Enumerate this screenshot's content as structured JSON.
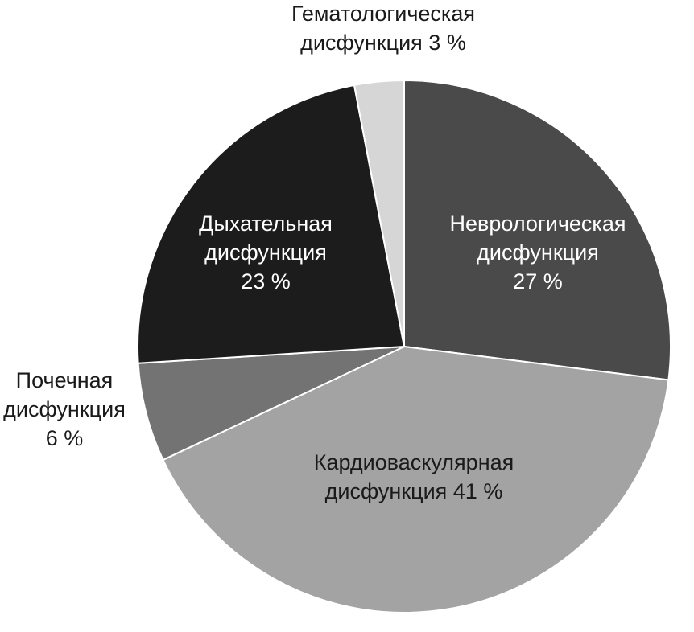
{
  "chart_data": {
    "type": "pie",
    "title": "",
    "start_angle_deg": 0,
    "direction": "clockwise",
    "slices": [
      {
        "label_lines": [
          "Неврологическая",
          "дисфункция",
          "27 %"
        ],
        "value": 27,
        "color": "#4a4a4a",
        "label_color": "#ffffff",
        "label_position": "inside"
      },
      {
        "label_lines": [
          "Кардиоваскулярная",
          "дисфункция 41 %"
        ],
        "value": 41,
        "color": "#a3a3a3",
        "label_color": "#1a1a1a",
        "label_position": "inside"
      },
      {
        "label_lines": [
          "Почечная",
          "дисфункция",
          "6 %"
        ],
        "value": 6,
        "color": "#737373",
        "label_color": "#1a1a1a",
        "label_position": "outside-left"
      },
      {
        "label_lines": [
          "Дыхательная",
          "дисфункция",
          "23 %"
        ],
        "value": 23,
        "color": "#1c1c1c",
        "label_color": "#ffffff",
        "label_position": "inside"
      },
      {
        "label_lines": [
          "Гематологическая",
          "дисфункция 3 %"
        ],
        "value": 3,
        "color": "#d6d6d6",
        "label_color": "#1a1a1a",
        "label_position": "outside-top"
      }
    ]
  }
}
